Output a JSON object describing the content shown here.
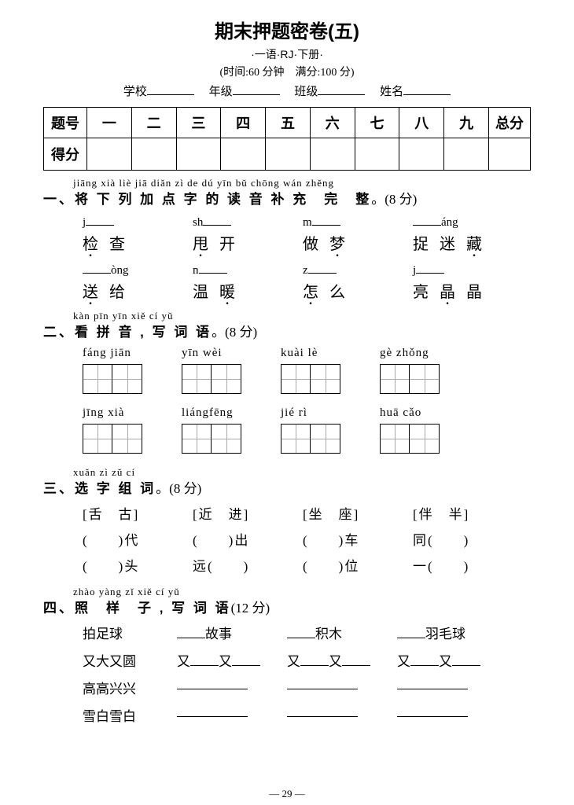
{
  "title": "期末押题密卷(五)",
  "sub1": "·一语·RJ·下册·",
  "sub2": "(时间:60 分钟　满分:100 分)",
  "info": {
    "l1": "学校",
    "l2": "年级",
    "l3": "班级",
    "l4": "姓名"
  },
  "score": {
    "lbl1": "题号",
    "lbl2": "得分",
    "cols": [
      "一",
      "二",
      "三",
      "四",
      "五",
      "六",
      "七",
      "八",
      "九",
      "总分"
    ]
  },
  "s1": {
    "py": "jiāng xià liè jiā diǎn zì  de dú yīn bǔ chōng wán zhěng",
    "head": "一、将 下 列 加 点 字 的 读 音 补 充　完　整",
    "pts": "。(8 分)",
    "row1": [
      {
        "pre": "j",
        "suf": "",
        "c1": "检",
        "c2": "查",
        "c3": "",
        "dot": 1
      },
      {
        "pre": "sh",
        "suf": "",
        "c1": "甩",
        "c2": "开",
        "c3": "",
        "dot": 1
      },
      {
        "pre": "m",
        "suf": "",
        "c1": "做",
        "c2": "梦",
        "c3": "",
        "dot": 2
      },
      {
        "pre": "",
        "suf": "áng",
        "c1": "捉",
        "c2": "迷",
        "c3": "藏",
        "dot": 3
      }
    ],
    "row2": [
      {
        "pre": "",
        "suf": "òng",
        "c1": "送",
        "c2": "给",
        "c3": "",
        "dot": 1
      },
      {
        "pre": "n",
        "suf": "",
        "c1": "温",
        "c2": "暖",
        "c3": "",
        "dot": 2
      },
      {
        "pre": "z",
        "suf": "",
        "c1": "怎",
        "c2": "么",
        "c3": "",
        "dot": 1
      },
      {
        "pre": "j",
        "suf": "",
        "c1": "亮",
        "c2": "晶",
        "c3": "晶",
        "dot": 2
      }
    ]
  },
  "s2": {
    "py": "kàn pīn yīn  xiě cí yǔ",
    "head": "二、看 拼 音 , 写 词 语",
    "pts": "。(8 分)",
    "row1": [
      "fáng jiān",
      "yīn  wèi",
      "kuài  lè",
      "gè  zhǒng"
    ],
    "row2": [
      "jīng  xià",
      "liángfēng",
      "jié   rì",
      "huā  cǎo"
    ]
  },
  "s3": {
    "py": "xuǎn zì  zǔ cí",
    "head": "三、选 字 组 词",
    "pts": "。(8 分)",
    "heads": [
      "[舌　古]",
      "[近　进]",
      "[坐　座]",
      "[伴　半]"
    ],
    "r1": [
      "(　　)代",
      "(　　)出",
      "(　　)车",
      "同(　　)"
    ],
    "r2": [
      "(　　)头",
      "远(　　)",
      "(　　)位",
      "一(　　)"
    ]
  },
  "s4": {
    "py": "zhào yàng zǐ   xiě cí yǔ",
    "head": "四、照　样　子 , 写 词 语",
    "pts": "(12 分)",
    "r1a": "拍足球",
    "r1b": "故事",
    "r1c": "积木",
    "r1d": "羽毛球",
    "r2a": "又大又圆",
    "r2b": "又",
    "r2c": "又",
    "r3a": "高高兴兴",
    "r4a": "雪白雪白"
  },
  "pagenum": "— 29 —"
}
